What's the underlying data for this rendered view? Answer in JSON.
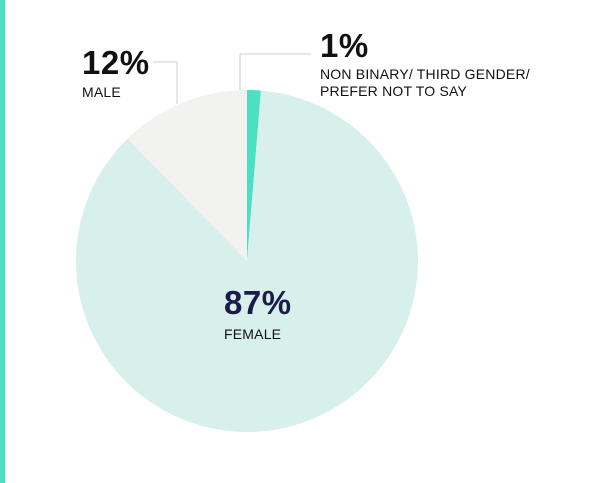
{
  "colors": {
    "accent": "#4ce0c2",
    "female": "#d7f0ec",
    "male": "#f2f2f1",
    "non_binary": "#4ce0c2",
    "female_label": "#1b1c4a",
    "text": "#111111",
    "leader_line": "#cfcfcf"
  },
  "chart_data": {
    "type": "pie",
    "title": "",
    "slices": [
      {
        "key": "non_binary",
        "pct": "1%",
        "label_lines": [
          "NON BINARY/ THIRD GENDER/",
          "PREFER NOT TO SAY"
        ],
        "value": 1.3
      },
      {
        "key": "female",
        "pct": "87%",
        "label_lines": [
          "FEMALE"
        ],
        "value": 86.4
      },
      {
        "key": "male",
        "pct": "12%",
        "label_lines": [
          "MALE"
        ],
        "value": 12.3
      }
    ],
    "start_angle": "12 o'clock",
    "direction": "clockwise"
  }
}
